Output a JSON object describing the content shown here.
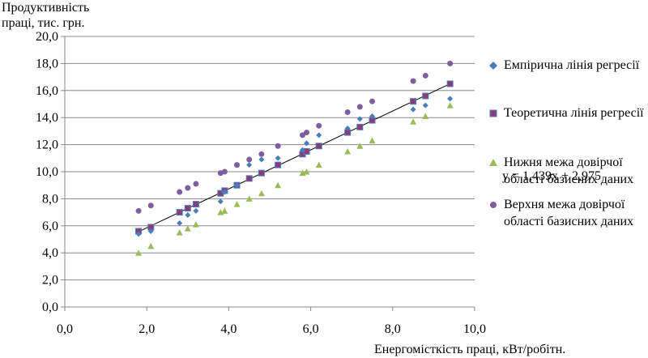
{
  "chart_data": {
    "type": "scatter",
    "ylabel": "Продуктивність праці, тис. грн.",
    "xlabel": "Енергомісткість праці, кВт/робітн.",
    "xlim": [
      0,
      10
    ],
    "ylim": [
      0,
      20
    ],
    "xticks": [
      "0,0",
      "2,0",
      "4,0",
      "6,0",
      "8,0",
      "10,0"
    ],
    "yticks": [
      "0,0",
      "2,0",
      "4,0",
      "6,0",
      "8,0",
      "10,0",
      "12,0",
      "14,0",
      "16,0",
      "18,0",
      "20,0"
    ],
    "grid": "horizontal",
    "legend_position": "right",
    "equation": "y = 1,439x + 2,975",
    "trendline": {
      "slope": 1.439,
      "intercept": 2.975,
      "x": [
        1.8,
        9.4
      ]
    },
    "series": [
      {
        "name": "Емпірична лінія регресії",
        "marker": "diamond",
        "color": "#4a7ebb",
        "points": [
          [
            1.8,
            5.4
          ],
          [
            2.1,
            5.6
          ],
          [
            2.8,
            6.2
          ],
          [
            3.0,
            6.8
          ],
          [
            3.2,
            7.1
          ],
          [
            3.8,
            7.8
          ],
          [
            3.9,
            8.5
          ],
          [
            4.2,
            9.0
          ],
          [
            4.5,
            10.5
          ],
          [
            4.8,
            10.9
          ],
          [
            5.2,
            11.0
          ],
          [
            5.8,
            11.6
          ],
          [
            5.9,
            12.1
          ],
          [
            6.2,
            12.7
          ],
          [
            6.9,
            13.2
          ],
          [
            7.2,
            13.9
          ],
          [
            7.5,
            14.1
          ],
          [
            8.5,
            14.6
          ],
          [
            8.8,
            14.9
          ],
          [
            9.4,
            15.4
          ]
        ]
      },
      {
        "name": "Теоретична лінія регресії",
        "marker": "square",
        "color": "#8c3b78",
        "points": [
          [
            1.8,
            5.6
          ],
          [
            2.1,
            5.9
          ],
          [
            2.8,
            7.0
          ],
          [
            3.0,
            7.3
          ],
          [
            3.2,
            7.6
          ],
          [
            3.8,
            8.4
          ],
          [
            3.9,
            8.6
          ],
          [
            4.2,
            9.0
          ],
          [
            4.5,
            9.5
          ],
          [
            4.8,
            9.9
          ],
          [
            5.2,
            10.5
          ],
          [
            5.8,
            11.3
          ],
          [
            5.9,
            11.5
          ],
          [
            6.2,
            11.9
          ],
          [
            6.9,
            12.9
          ],
          [
            7.2,
            13.3
          ],
          [
            7.5,
            13.8
          ],
          [
            8.5,
            15.2
          ],
          [
            8.8,
            15.6
          ],
          [
            9.4,
            16.5
          ]
        ]
      },
      {
        "name": "Нижня межа довірчої області базисних даних",
        "marker": "triangle",
        "color": "#9bbb59",
        "points": [
          [
            1.8,
            4.0
          ],
          [
            2.1,
            4.5
          ],
          [
            2.8,
            5.5
          ],
          [
            3.0,
            5.8
          ],
          [
            3.2,
            6.1
          ],
          [
            3.8,
            7.0
          ],
          [
            3.9,
            7.1
          ],
          [
            4.2,
            7.6
          ],
          [
            4.5,
            8.0
          ],
          [
            4.8,
            8.4
          ],
          [
            5.2,
            9.0
          ],
          [
            5.8,
            9.9
          ],
          [
            5.9,
            10.0
          ],
          [
            6.2,
            10.5
          ],
          [
            6.9,
            11.5
          ],
          [
            7.2,
            11.9
          ],
          [
            7.5,
            12.3
          ],
          [
            8.5,
            13.7
          ],
          [
            8.8,
            14.1
          ],
          [
            9.4,
            14.9
          ]
        ]
      },
      {
        "name": "Верхня межа довірчої області базисних даних",
        "marker": "circle",
        "color": "#7d5fa0",
        "points": [
          [
            1.8,
            7.1
          ],
          [
            2.1,
            7.5
          ],
          [
            2.8,
            8.5
          ],
          [
            3.0,
            8.8
          ],
          [
            3.2,
            9.1
          ],
          [
            3.8,
            9.9
          ],
          [
            3.9,
            10.0
          ],
          [
            4.2,
            10.5
          ],
          [
            4.5,
            10.9
          ],
          [
            4.8,
            11.3
          ],
          [
            5.2,
            11.9
          ],
          [
            5.8,
            12.7
          ],
          [
            5.9,
            12.9
          ],
          [
            6.2,
            13.4
          ],
          [
            6.9,
            14.4
          ],
          [
            7.2,
            14.8
          ],
          [
            7.5,
            15.2
          ],
          [
            8.5,
            16.7
          ],
          [
            8.8,
            17.1
          ],
          [
            9.4,
            18.0
          ]
        ]
      }
    ]
  }
}
